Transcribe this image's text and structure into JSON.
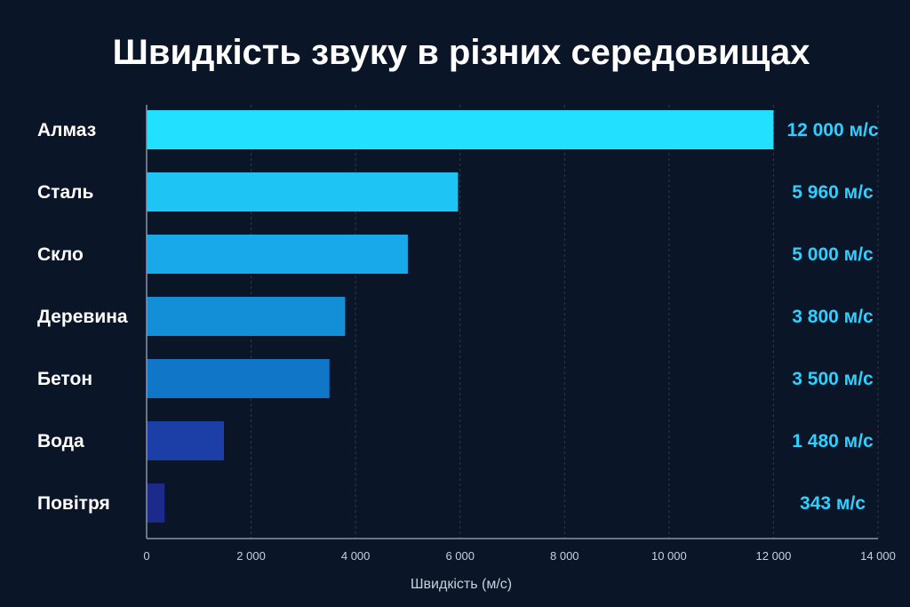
{
  "chart_data": {
    "type": "bar",
    "orientation": "horizontal",
    "title": "Швидкість звуку в різних середовищах",
    "xlabel": "Швидкість (м/с)",
    "ylabel": "",
    "xlim": [
      0,
      14000
    ],
    "xticks": [
      0,
      2000,
      4000,
      6000,
      8000,
      10000,
      12000,
      14000
    ],
    "xtick_labels": [
      "0",
      "2 000",
      "4 000",
      "6 000",
      "8 000",
      "10 000",
      "12 000",
      "14 000"
    ],
    "grid": "vertical dashed",
    "categories": [
      "Алмаз",
      "Сталь",
      "Скло",
      "Деревина",
      "Бетон",
      "Вода",
      "Повітря"
    ],
    "values": [
      12000,
      5960,
      5000,
      3800,
      3500,
      1480,
      343
    ],
    "value_labels": [
      "12 000 м/с",
      "5 960 м/с",
      "5 000 м/с",
      "3 800 м/с",
      "3 500 м/с",
      "1 480 м/с",
      "343 м/с"
    ],
    "bar_colors": [
      "#22e0ff",
      "#1ec4f3",
      "#17a9ea",
      "#138fd8",
      "#0f76c8",
      "#1b3fa6",
      "#1c2a8c"
    ],
    "value_label_color": "#2fd0ff"
  }
}
